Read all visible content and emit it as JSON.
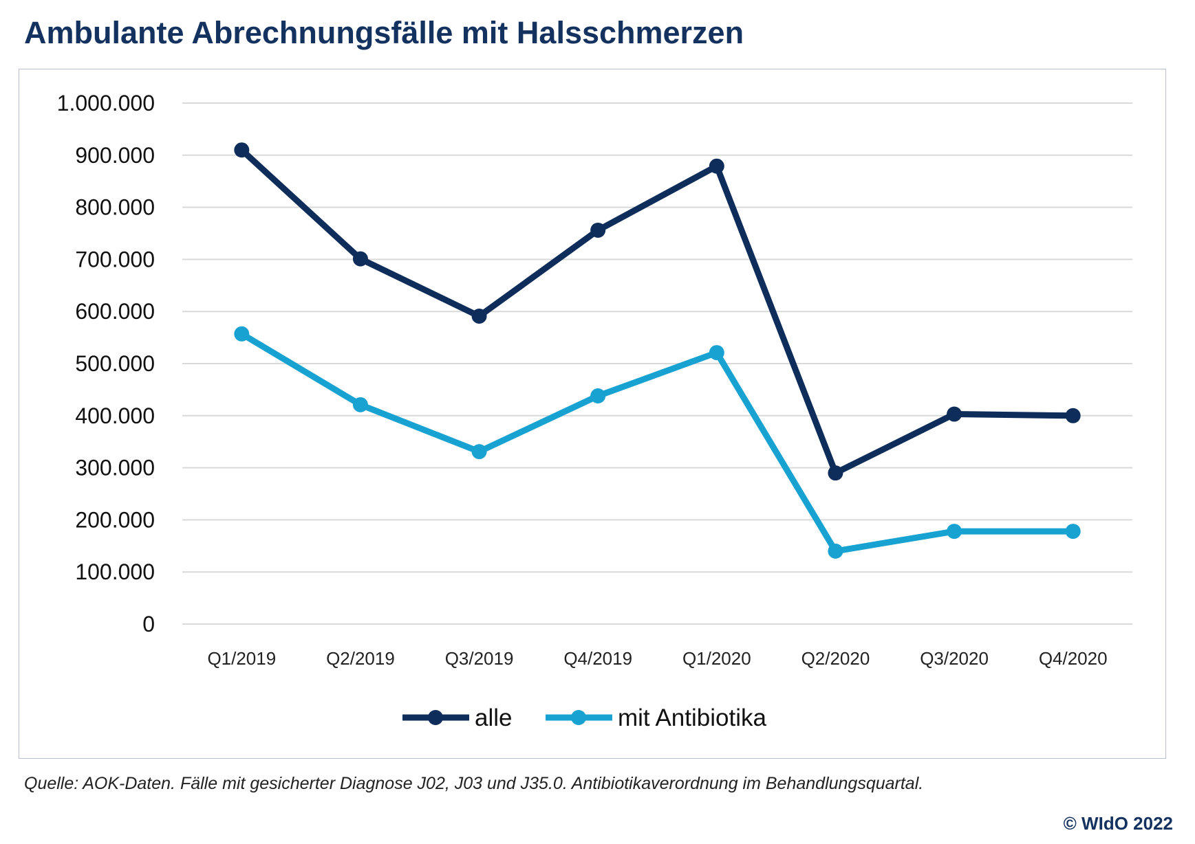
{
  "chart_data": {
    "type": "line",
    "title": "Ambulante Abrechnungsfälle mit Halsschmerzen",
    "categories": [
      "Q1/2019",
      "Q2/2019",
      "Q3/2019",
      "Q4/2019",
      "Q1/2020",
      "Q2/2020",
      "Q3/2020",
      "Q4/2020"
    ],
    "series": [
      {
        "name": "alle",
        "color": "#0e2d5a",
        "values": [
          910000,
          701000,
          591000,
          756000,
          879000,
          290000,
          403000,
          400000
        ]
      },
      {
        "name": "mit Antibiotika",
        "color": "#17a2d2",
        "values": [
          557000,
          421000,
          331000,
          438000,
          521000,
          140000,
          178000,
          178000
        ]
      }
    ],
    "yticks": [
      "0",
      "100.000",
      "200.000",
      "300.000",
      "400.000",
      "500.000",
      "600.000",
      "700.000",
      "800.000",
      "900.000",
      "1.000.000"
    ],
    "ylim": [
      0,
      1000000
    ],
    "xlabel": "",
    "ylabel": "",
    "grid": true,
    "legend": "bottom"
  },
  "source": "Quelle: AOK-Daten. Fälle mit gesicherter Diagnose J02, J03 und J35.0. Antibiotikaverordnung im Behandlungsquartal.",
  "copyright": "© WIdO 2022"
}
